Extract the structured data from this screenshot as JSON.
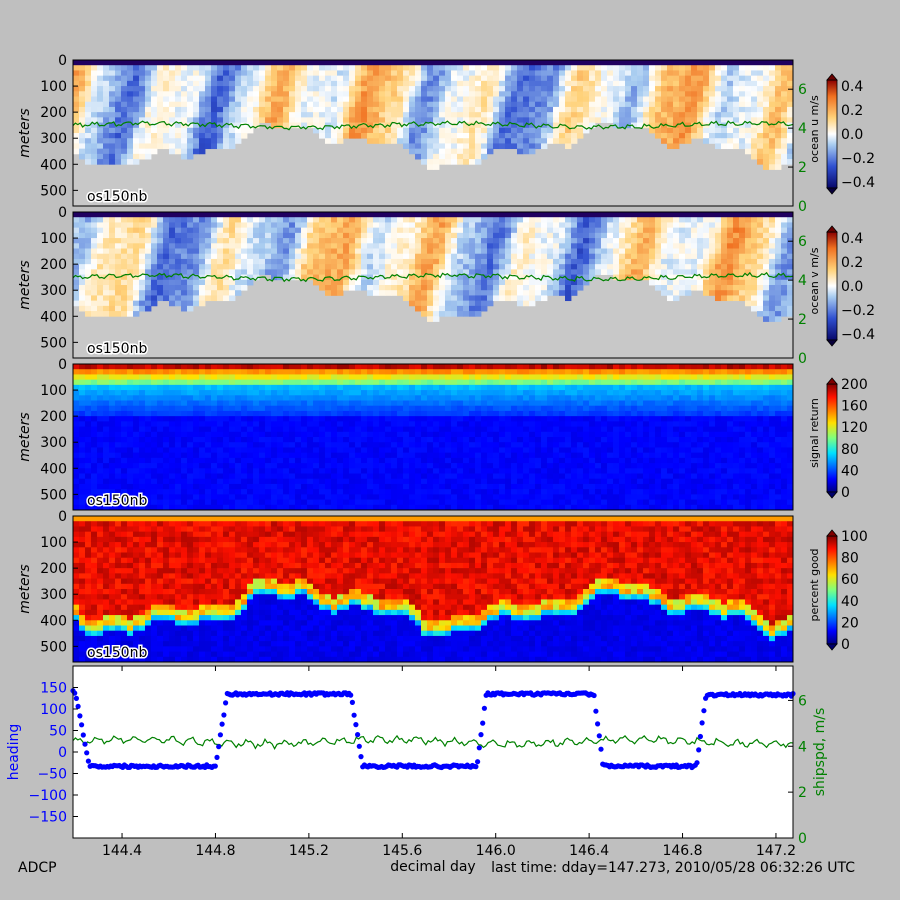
{
  "colors": {
    "background": "#bfbfbf",
    "ship_speed": "#008000",
    "heading": "#0000ff",
    "nodata": "#c8c8c8"
  },
  "footer": {
    "left": "ADCP",
    "right": "last time: dday=147.273,  2010/05/28 06:32:26 UTC"
  },
  "chart_data": [
    {
      "type": "heatmap",
      "panel": "ocean u",
      "ylabel": "meters",
      "ylim": [
        560,
        0
      ],
      "yticks": [
        "0",
        "100",
        "200",
        "300",
        "400",
        "500"
      ],
      "label": "os150nb",
      "colorbar": {
        "label": "ocean u m/s",
        "ticks": [
          "0.4",
          "0.2",
          "0.0",
          "−0.2",
          "−0.4"
        ],
        "range": [
          -0.45,
          0.45
        ],
        "colormap": "bwr"
      },
      "right_axis": {
        "ticks": [
          "6",
          "4",
          "2",
          "0"
        ],
        "range": [
          0,
          7.5
        ],
        "color": "#008000"
      }
    },
    {
      "type": "heatmap",
      "panel": "ocean v",
      "ylabel": "meters",
      "ylim": [
        560,
        0
      ],
      "yticks": [
        "0",
        "100",
        "200",
        "300",
        "400",
        "500"
      ],
      "label": "os150nb",
      "colorbar": {
        "label": "ocean v m/s",
        "ticks": [
          "0.4",
          "0.2",
          "0.0",
          "−0.2",
          "−0.4"
        ],
        "range": [
          -0.45,
          0.45
        ],
        "colormap": "bwr"
      },
      "right_axis": {
        "ticks": [
          "6",
          "4",
          "2",
          "0"
        ],
        "range": [
          0,
          7.5
        ],
        "color": "#008000"
      }
    },
    {
      "type": "heatmap",
      "panel": "signal return",
      "ylabel": "meters",
      "ylim": [
        560,
        0
      ],
      "yticks": [
        "0",
        "100",
        "200",
        "300",
        "400",
        "500"
      ],
      "label": "os150nb",
      "colorbar": {
        "label": "signal return",
        "ticks": [
          "200",
          "160",
          "120",
          "80",
          "40",
          "0"
        ],
        "range": [
          0,
          200
        ],
        "colormap": "jet"
      }
    },
    {
      "type": "heatmap",
      "panel": "percent good",
      "ylabel": "meters",
      "ylim": [
        560,
        0
      ],
      "yticks": [
        "0",
        "100",
        "200",
        "300",
        "400",
        "500"
      ],
      "label": "os150nb",
      "colorbar": {
        "label": "percent good",
        "ticks": [
          "100",
          "80",
          "60",
          "40",
          "20",
          "0"
        ],
        "range": [
          0,
          100
        ],
        "colormap": "jet"
      }
    },
    {
      "type": "scatter",
      "panel": "heading and ship speed",
      "xlabel": "decimal day",
      "xlim": [
        144.19,
        147.273
      ],
      "xticks": [
        "144.4",
        "144.8",
        "145.2",
        "145.6",
        "146.0",
        "146.4",
        "146.8",
        "147.2"
      ],
      "ylabel": "heading",
      "ylim": [
        -200,
        200
      ],
      "yticks": [
        "150",
        "100",
        "50",
        "0",
        "−50",
        "−100",
        "−150"
      ],
      "y2label": "shipspd, m/s",
      "y2lim": [
        0,
        7.5
      ],
      "y2ticks": [
        "6",
        "4",
        "2",
        "0"
      ],
      "heading_legs": [
        {
          "from": 144.19,
          "to": 144.2,
          "value": 140
        },
        {
          "from": 144.26,
          "to": 144.8,
          "value": -33
        },
        {
          "from": 144.85,
          "to": 145.38,
          "value": 135
        },
        {
          "from": 145.43,
          "to": 145.92,
          "value": -33
        },
        {
          "from": 145.96,
          "to": 146.42,
          "value": 135
        },
        {
          "from": 146.46,
          "to": 146.86,
          "value": -33
        },
        {
          "from": 146.9,
          "to": 147.273,
          "value": 133
        }
      ],
      "ship_speed_mean": 4.2
    }
  ]
}
